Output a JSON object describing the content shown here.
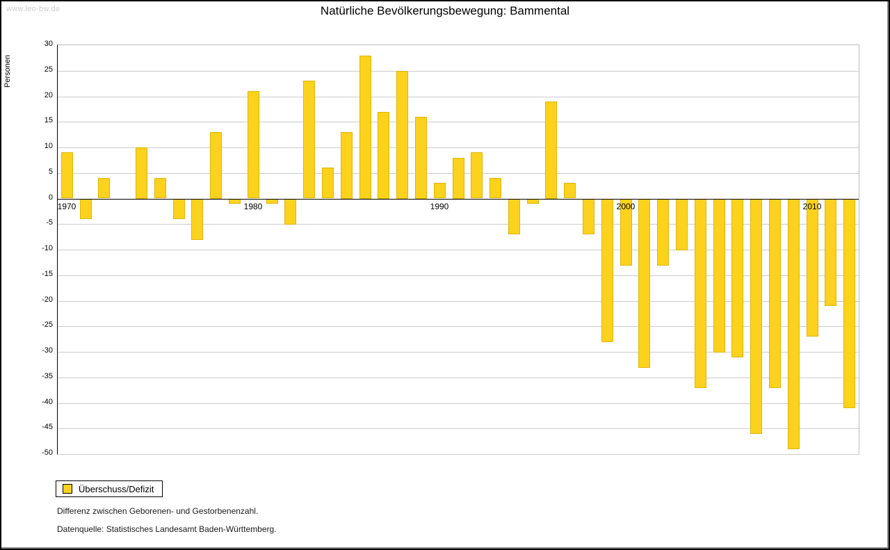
{
  "watermark": "www.leo-bw.de",
  "title": "Natürliche Bevölkerungsbewegung: Bammental",
  "y_axis_label": "Personen",
  "legend": {
    "label": "Überschuss/Defizit"
  },
  "footnotes": {
    "line1": "Differenz zwischen Geborenen- und Gestorbenenzahl.",
    "line2": "Datenquelle: Statistisches Landesamt Baden-Württemberg."
  },
  "colors": {
    "bar": "#fcd21c",
    "grid": "#cccccc",
    "zero_line": "#000000",
    "watermark": "#cccccc"
  },
  "chart_data": {
    "type": "bar",
    "title": "Natürliche Bevölkerungsbewegung: Bammental",
    "xlabel": "",
    "ylabel": "Personen",
    "ylim": [
      -50,
      30
    ],
    "y_tick_step": 5,
    "grid": true,
    "legend_position": "bottom-left",
    "legend_entries": [
      "Überschuss/Defizit"
    ],
    "x_tick_years": [
      1970,
      1980,
      1990,
      2000,
      2010
    ],
    "years": [
      1970,
      1971,
      1972,
      1973,
      1974,
      1975,
      1976,
      1977,
      1978,
      1979,
      1980,
      1981,
      1982,
      1983,
      1984,
      1985,
      1986,
      1987,
      1988,
      1989,
      1990,
      1991,
      1992,
      1993,
      1994,
      1995,
      1996,
      1997,
      1998,
      1999,
      2000,
      2001,
      2002,
      2003,
      2004,
      2005,
      2006,
      2007,
      2008,
      2009,
      2010,
      2011,
      2012
    ],
    "values": [
      9,
      -4,
      4,
      0,
      10,
      4,
      -4,
      -8,
      13,
      -1,
      21,
      -1,
      -5,
      23,
      6,
      13,
      28,
      17,
      25,
      16,
      3,
      8,
      9,
      4,
      -7,
      -1,
      19,
      3,
      -7,
      -28,
      -13,
      -33,
      -13,
      -10,
      -37,
      -30,
      -31,
      -46,
      -37,
      -49,
      -27,
      -21,
      -41
    ]
  }
}
